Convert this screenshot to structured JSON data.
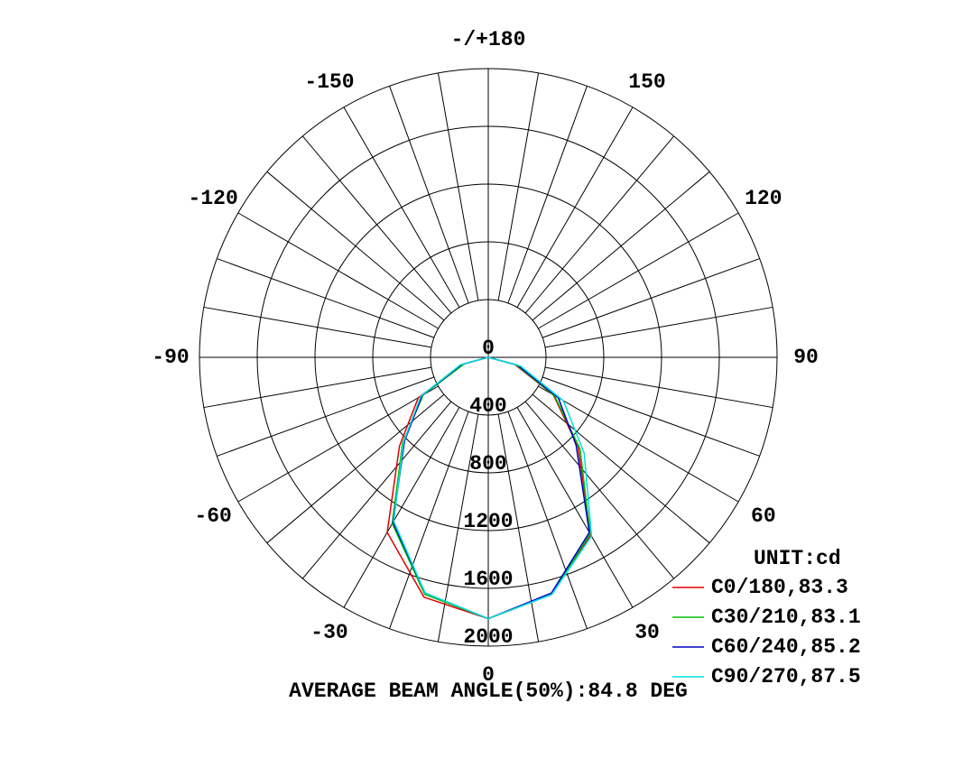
{
  "chart_data": {
    "type": "polar",
    "unit_label": "UNIT:cd",
    "footer": "AVERAGE BEAM ANGLE(50%):84.8 DEG",
    "x": [
      -90,
      -75,
      -60,
      -45,
      -30,
      -15,
      0,
      15,
      30,
      45,
      60,
      75,
      90
    ],
    "rlim": [
      0,
      2000
    ],
    "rticks": [
      0,
      400,
      800,
      1200,
      1600,
      2000
    ],
    "angle_ticks": [
      0,
      30,
      60,
      90,
      120,
      150,
      {
        "value": 180,
        "label": "-/+180"
      },
      -150,
      -120,
      -90,
      -60,
      -30
    ],
    "series": [
      {
        "name": "C0/180,83.3",
        "color": "#e00000",
        "values": [
          0,
          180,
          560,
          870,
          1400,
          1720,
          1810,
          1700,
          1420,
          880,
          520,
          190,
          0
        ]
      },
      {
        "name": "C30/210,83.1",
        "color": "#00c000",
        "values": [
          0,
          170,
          520,
          840,
          1330,
          1700,
          1810,
          1700,
          1410,
          900,
          530,
          200,
          0
        ]
      },
      {
        "name": "C60/240,85.2",
        "color": "#0000c0",
        "values": [
          0,
          190,
          530,
          820,
          1320,
          1690,
          1810,
          1690,
          1400,
          860,
          560,
          210,
          0
        ]
      },
      {
        "name": "C90/270,87.5",
        "color": "#00e0e0",
        "values": [
          0,
          200,
          540,
          830,
          1310,
          1690,
          1810,
          1700,
          1430,
          940,
          600,
          230,
          0
        ]
      }
    ]
  }
}
